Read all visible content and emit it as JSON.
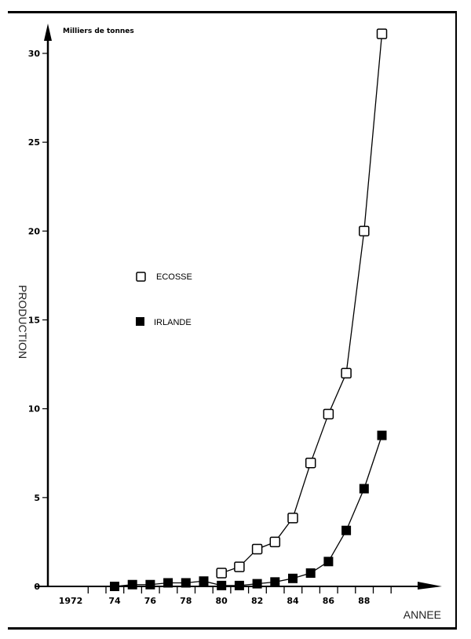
{
  "chart_data": {
    "type": "line",
    "title": "",
    "xlabel": "ANNEE",
    "ylabel": "PRODUCTION",
    "y_unit_label": "Milliers de tonnes",
    "ylim": [
      0,
      30
    ],
    "y_ticks": [
      0,
      5,
      10,
      15,
      20,
      25,
      30
    ],
    "x_tick_labels": [
      "1972",
      "74",
      "76",
      "78",
      "80",
      "82",
      "84",
      "86",
      "88"
    ],
    "grid": false,
    "legend_position": "inside-left-middle",
    "x": [
      1974,
      1975,
      1976,
      1977,
      1978,
      1979,
      1980,
      1981,
      1982,
      1983,
      1984,
      1985,
      1986,
      1987,
      1988,
      1989
    ],
    "series": [
      {
        "name": "ECOSSE",
        "marker": "open-square",
        "x": [
          1980,
          1981,
          1982,
          1983,
          1984,
          1985,
          1986,
          1987,
          1988,
          1989
        ],
        "values": [
          0.75,
          1.1,
          2.1,
          2.5,
          3.85,
          6.95,
          9.7,
          12.0,
          20.0,
          31.1
        ]
      },
      {
        "name": "IRLANDE",
        "marker": "filled-square",
        "x": [
          1974,
          1975,
          1976,
          1977,
          1978,
          1979,
          1980,
          1981,
          1982,
          1983,
          1984,
          1985,
          1986,
          1987,
          1988,
          1989
        ],
        "values": [
          0.0,
          0.1,
          0.1,
          0.2,
          0.2,
          0.3,
          0.05,
          0.05,
          0.15,
          0.25,
          0.45,
          0.75,
          1.4,
          3.15,
          5.5,
          8.5
        ]
      }
    ]
  },
  "legend": {
    "items": [
      {
        "label": "ECOSSE"
      },
      {
        "label": "IRLANDE"
      }
    ]
  }
}
